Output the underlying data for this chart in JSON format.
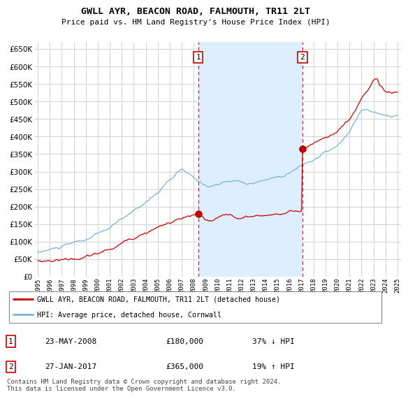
{
  "title": "GWLL AYR, BEACON ROAD, FALMOUTH, TR11 2LT",
  "subtitle": "Price paid vs. HM Land Registry's House Price Index (HPI)",
  "ylim": [
    0,
    670000
  ],
  "ytick_vals": [
    0,
    50000,
    100000,
    150000,
    200000,
    250000,
    300000,
    350000,
    400000,
    450000,
    500000,
    550000,
    600000,
    650000
  ],
  "hpi_color": "#7ab3d4",
  "price_color": "#cc0000",
  "marker_color": "#cc0000",
  "plot_bg_color": "#ffffff",
  "fig_bg_color": "#ffffff",
  "grid_color": "#cccccc",
  "shade_color": "#ddeeff",
  "legend_label_red": "GWLL AYR, BEACON ROAD, FALMOUTH, TR11 2LT (detached house)",
  "legend_label_blue": "HPI: Average price, detached house, Cornwall",
  "point1_date": "23-MAY-2008",
  "point1_price": "£180,000",
  "point1_hpi": "37% ↓ HPI",
  "point2_date": "27-JAN-2017",
  "point2_price": "£365,000",
  "point2_hpi": "19% ↑ HPI",
  "footer": "Contains HM Land Registry data © Crown copyright and database right 2024.\nThis data is licensed under the Open Government Licence v3.0.",
  "vline1_x": 2008.38,
  "vline2_x": 2017.07,
  "xmin": 1995,
  "xmax": 2025
}
